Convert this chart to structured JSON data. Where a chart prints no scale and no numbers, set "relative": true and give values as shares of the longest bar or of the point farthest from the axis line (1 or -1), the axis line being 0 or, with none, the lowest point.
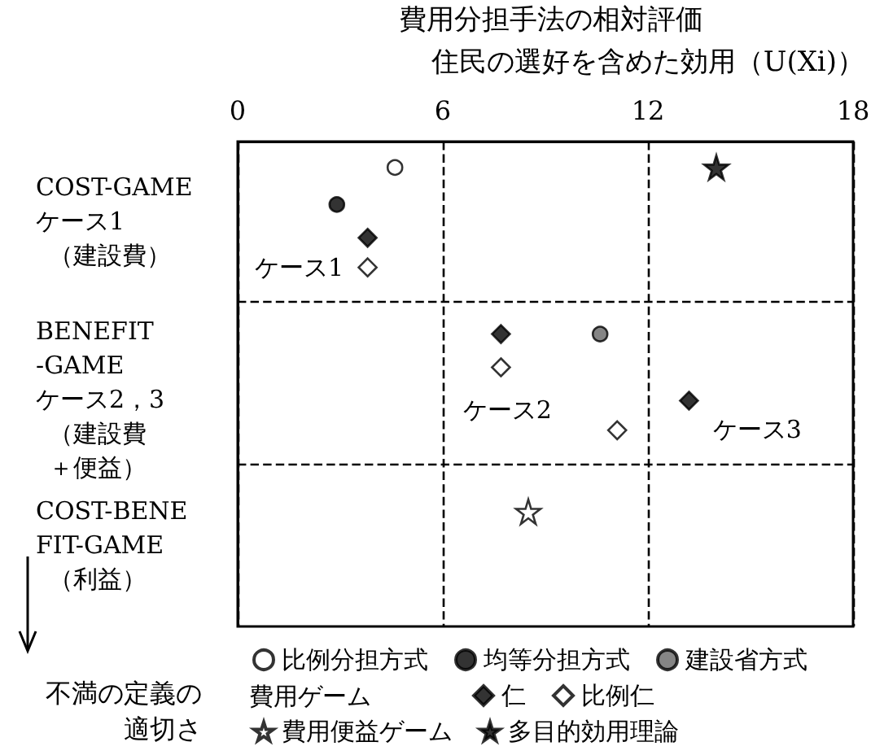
{
  "chart_data": {
    "type": "scatter",
    "title": "費用分担手法の相対評価",
    "xlabel": "住民の選好を含めた効用（U(Xi)）",
    "relative": true,
    "xlim": [
      0,
      18
    ],
    "xticks": [
      0,
      6,
      12,
      18
    ],
    "grid": "x",
    "legend": "bottom",
    "ref_lines": [
      {
        "axis": "y",
        "value": -0.43,
        "line_style": "dashed"
      },
      {
        "axis": "y",
        "value": -0.87,
        "line_style": "dashed"
      }
    ],
    "annotations": [
      "COST-GAME\nケース1\n（建設費）",
      "BENEFIT\n-GAME\nケース2，3\n（建設費＋便益）",
      "COST-BENE\nFIT-GAME\n（利益）",
      "費用ゲーム",
      "不満の定義の適切さ",
      {
        "text": "ケース1",
        "x": 3.8,
        "y": -0.34
      },
      {
        "text": "ケース2",
        "x": 7.7,
        "y": -0.61
      },
      {
        "text": "ケース3",
        "x": 13.2,
        "y": -0.7
      }
    ],
    "series": [
      {
        "name": "比例分担方式",
        "color": "#ffffff",
        "marker": "circle",
        "x": [
          4.6
        ],
        "values": [
          -0.07
        ]
      },
      {
        "name": "均等分担方式",
        "color": "#000000",
        "marker": "circle",
        "x": [
          2.9
        ],
        "values": [
          -0.17
        ]
      },
      {
        "name": "建設省方式",
        "color": "#666666",
        "marker": "circle",
        "x": [
          10.6
        ],
        "values": [
          -0.52
        ]
      },
      {
        "name": "仁",
        "color": "#000000",
        "marker": "diamond",
        "x": [
          3.8,
          7.7,
          13.2
        ],
        "values": [
          -0.26,
          -0.52,
          -0.7
        ]
      },
      {
        "name": "比例仁",
        "color": "#ffffff",
        "marker": "diamond",
        "x": [
          3.8,
          7.7,
          11.1
        ],
        "values": [
          -0.34,
          -0.61,
          -0.78
        ]
      },
      {
        "name": "費用便益ゲーム",
        "color": "#ffffff",
        "marker": "star",
        "x": [
          8.5
        ],
        "values": [
          -1
        ]
      },
      {
        "name": "多目的効用理論",
        "color": "#000000",
        "marker": "star",
        "x": [
          14.0
        ],
        "values": [
          -0.07
        ]
      }
    ]
  }
}
